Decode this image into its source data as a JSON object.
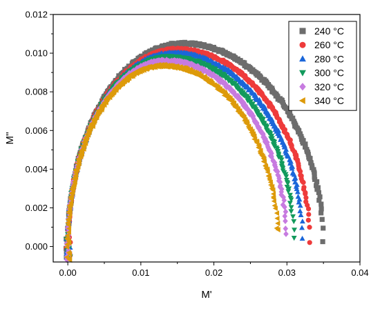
{
  "chart_data": {
    "type": "scatter",
    "title": "",
    "xlabel": "M'",
    "ylabel": "M''",
    "xlim": [
      -0.002,
      0.04
    ],
    "ylim": [
      -0.0008,
      0.012
    ],
    "xticks": [
      0.0,
      0.01,
      0.02,
      0.03,
      0.04
    ],
    "xtick_labels": [
      "0.00",
      "0.01",
      "0.02",
      "0.03",
      "0.04"
    ],
    "yticks": [
      0.0,
      0.002,
      0.004,
      0.006,
      0.008,
      0.01,
      0.012
    ],
    "ytick_labels": [
      "0.000",
      "0.002",
      "0.004",
      "0.006",
      "0.008",
      "0.010",
      "0.012"
    ],
    "grid": false,
    "legend_position": "top-right",
    "series": [
      {
        "name": "240 °C",
        "marker": "square",
        "color": "#6d6d6d",
        "x_end": 0.035,
        "y_peak": 0.0105,
        "y_end": 0.0003
      },
      {
        "name": "260 °C",
        "marker": "circle",
        "color": "#ee3b3b",
        "x_end": 0.0332,
        "y_peak": 0.0102,
        "y_end": 0.0002
      },
      {
        "name": "280 °C",
        "marker": "triangle-up",
        "color": "#1a66d9",
        "x_end": 0.0322,
        "y_peak": 0.01,
        "y_end": 0.0004
      },
      {
        "name": "300 °C",
        "marker": "triangle-down",
        "color": "#129a5c",
        "x_end": 0.031,
        "y_peak": 0.0098,
        "y_end": 0.0005
      },
      {
        "name": "320 °C",
        "marker": "diamond",
        "color": "#c77be0",
        "x_end": 0.03,
        "y_peak": 0.0096,
        "y_end": 0.0007
      },
      {
        "name": "340 °C",
        "marker": "triangle-left",
        "color": "#dd9a0a",
        "x_end": 0.0288,
        "y_peak": 0.00935,
        "y_end": 0.0009
      }
    ]
  }
}
